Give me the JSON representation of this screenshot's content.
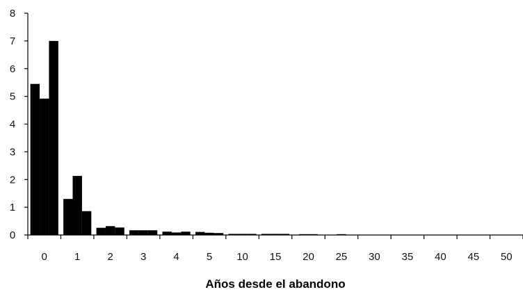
{
  "chart_data": {
    "type": "bar",
    "title": "",
    "xlabel": "Años desde el abandono",
    "ylabel": "",
    "ylim": [
      0,
      8
    ],
    "yticks": [
      0,
      1,
      2,
      3,
      4,
      5,
      6,
      7,
      8
    ],
    "grid": false,
    "legend": "none",
    "bar_color": "#000000",
    "category_labels": [
      "0",
      "1",
      "2",
      "3",
      "4",
      "5",
      "10",
      "15",
      "20",
      "25",
      "30",
      "35",
      "40",
      "45",
      "50"
    ],
    "groups": [
      {
        "label": "0",
        "values": [
          5.45,
          4.92,
          7.0
        ]
      },
      {
        "label": "1",
        "values": [
          1.3,
          2.13,
          0.86
        ]
      },
      {
        "label": "2",
        "values": [
          0.26,
          0.32,
          0.27
        ]
      },
      {
        "label": "3",
        "values": [
          0.17,
          0.17,
          0.17
        ]
      },
      {
        "label": "4",
        "values": [
          0.12,
          0.09,
          0.12
        ]
      },
      {
        "label": "5",
        "values": [
          0.11,
          0.08,
          0.07
        ]
      },
      {
        "label": "10",
        "values": [
          0.04,
          0.04,
          0.04
        ]
      },
      {
        "label": "15",
        "values": [
          0.04,
          0.04,
          0.04
        ]
      },
      {
        "label": "20",
        "values": [
          0.03,
          0.03
        ]
      },
      {
        "label": "25",
        "values": [
          0.03
        ]
      },
      {
        "label": "30",
        "values": []
      },
      {
        "label": "35",
        "values": []
      },
      {
        "label": "40",
        "values": []
      },
      {
        "label": "45",
        "values": []
      },
      {
        "label": "50",
        "values": []
      }
    ]
  }
}
